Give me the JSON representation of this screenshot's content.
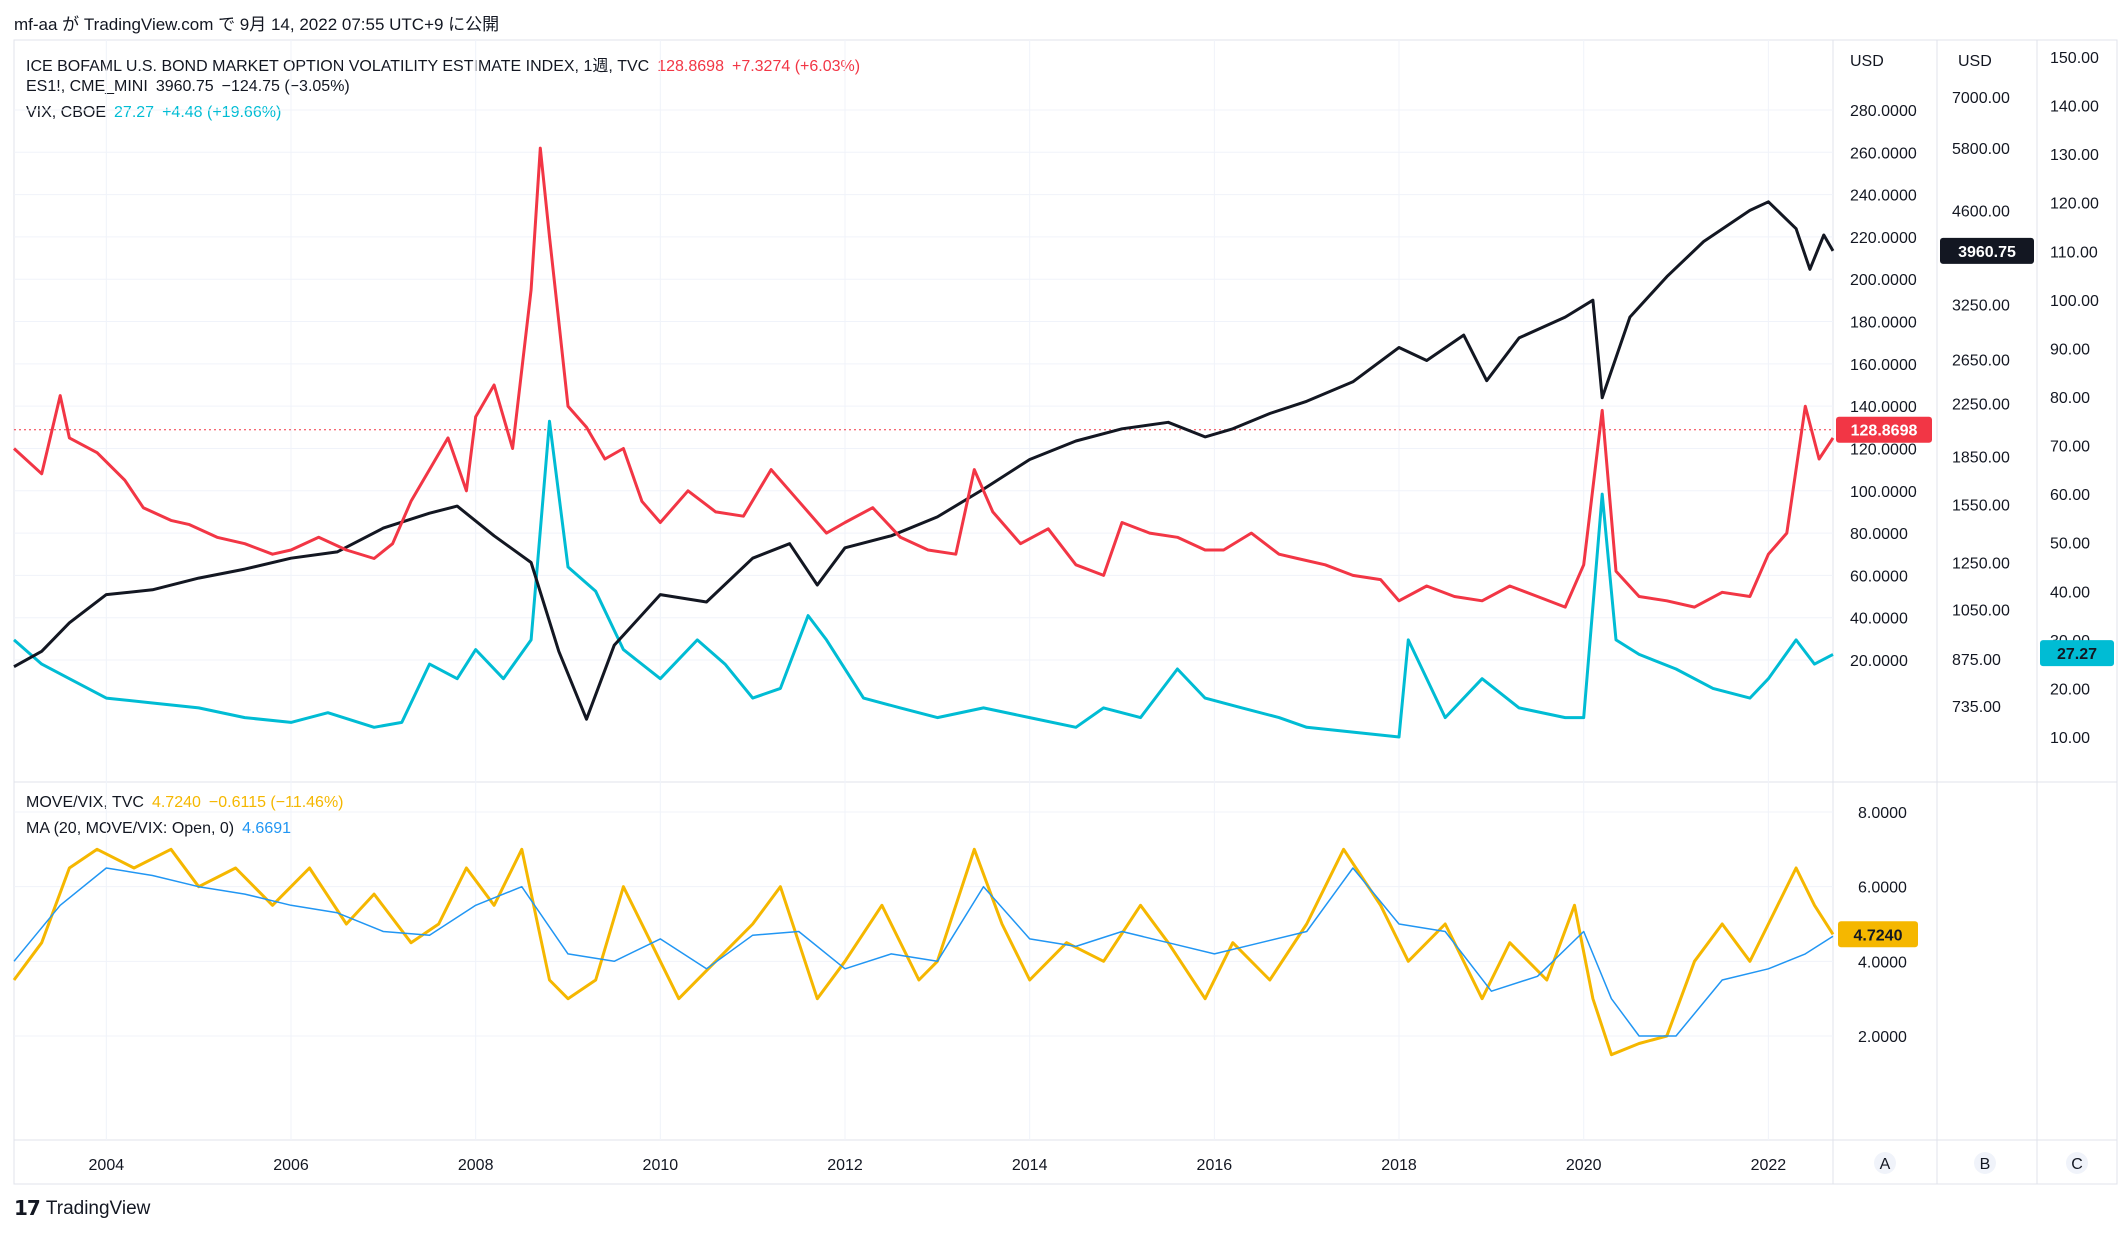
{
  "header": {
    "text": "mf-aa が TradingView.com で 9月 14, 2022 07:55 UTC+9 に公開"
  },
  "footer": {
    "brand": "TradingView",
    "logo_icon": "tradingview-logo-icon"
  },
  "legend_top": [
    {
      "name": "ICE BOFAML U.S. BOND MARKET OPTION VOLATILITY ESTIMATE INDEX, 1週, TVC",
      "value": "128.8698",
      "change": "+7.3274 (+6.03%)",
      "color": "#f23645"
    },
    {
      "name": "ES1!, CME_MINI",
      "value": "3960.75",
      "change": "−124.75 (−3.05%)",
      "color": "#131722"
    },
    {
      "name": "VIX, CBOE",
      "value": "27.27",
      "change": "+4.48 (+19.66%)",
      "color": "#00bcd4"
    }
  ],
  "legend_bottom": [
    {
      "name": "MOVE/VIX, TVC",
      "value": "4.7240",
      "change": "−0.6115 (−11.46%)",
      "color": "#f5b700"
    },
    {
      "name": "MA (20, MOVE/VIX: Open, 0)",
      "value": "4.6691",
      "change": "",
      "color": "#2196f3"
    }
  ],
  "scales": {
    "A": {
      "header": "USD",
      "ticks": [
        "280.0000",
        "260.0000",
        "240.0000",
        "220.0000",
        "200.0000",
        "180.0000",
        "160.0000",
        "140.0000",
        "120.0000",
        "100.0000",
        "80.0000",
        "60.0000",
        "40.0000",
        "20.0000"
      ],
      "badge": "128.8698",
      "badge_color": "#f23645"
    },
    "B": {
      "header": "USD",
      "ticks": [
        "7000.00",
        "5800.00",
        "4600.00",
        "3250.00",
        "2650.00",
        "2250.00",
        "1850.00",
        "1550.00",
        "1250.00",
        "1050.00",
        "875.00",
        "735.00"
      ],
      "badge": "3960.75",
      "badge_color": "#131722"
    },
    "C": {
      "ticks": [
        "150.00",
        "140.00",
        "130.00",
        "120.00",
        "110.00",
        "100.00",
        "90.00",
        "80.00",
        "70.00",
        "60.00",
        "50.00",
        "40.00",
        "30.00",
        "20.00",
        "10.00"
      ],
      "badge": "27.27",
      "badge_color": "#00bcd4"
    },
    "bottom": {
      "ticks": [
        "8.0000",
        "6.0000",
        "4.0000",
        "2.0000"
      ],
      "badge": "4.7240",
      "badge_color": "#f5b700"
    },
    "labels": [
      "A",
      "B",
      "C"
    ]
  },
  "x_axis": {
    "ticks": [
      "2004",
      "2006",
      "2008",
      "2010",
      "2012",
      "2014",
      "2016",
      "2018",
      "2020",
      "2022"
    ]
  },
  "chart_data": [
    {
      "type": "line",
      "title": "",
      "x_range": [
        2003.0,
        2022.7
      ],
      "series": [
        {
          "name": "ICE BOFAML U.S. BOND MARKET OPTION VOLATILITY ESTIMATE INDEX",
          "axis": "A",
          "color": "#f23645",
          "x": [
            2003.0,
            2003.3,
            2003.5,
            2003.6,
            2003.9,
            2004.2,
            2004.4,
            2004.7,
            2004.9,
            2005.2,
            2005.5,
            2005.8,
            2006.0,
            2006.3,
            2006.6,
            2006.9,
            2007.1,
            2007.3,
            2007.5,
            2007.7,
            2007.9,
            2008.0,
            2008.2,
            2008.4,
            2008.6,
            2008.7,
            2008.8,
            2008.9,
            2009.0,
            2009.2,
            2009.4,
            2009.6,
            2009.8,
            2010.0,
            2010.3,
            2010.6,
            2010.9,
            2011.2,
            2011.5,
            2011.8,
            2012.0,
            2012.3,
            2012.6,
            2012.9,
            2013.2,
            2013.4,
            2013.6,
            2013.9,
            2014.2,
            2014.5,
            2014.8,
            2015.0,
            2015.3,
            2015.6,
            2015.9,
            2016.1,
            2016.4,
            2016.7,
            2016.9,
            2017.2,
            2017.5,
            2017.8,
            2018.0,
            2018.3,
            2018.6,
            2018.9,
            2019.2,
            2019.5,
            2019.8,
            2020.0,
            2020.2,
            2020.35,
            2020.6,
            2020.9,
            2021.2,
            2021.5,
            2021.8,
            2022.0,
            2022.2,
            2022.4,
            2022.55,
            2022.7
          ],
          "values": [
            120,
            108,
            145,
            125,
            118,
            105,
            92,
            86,
            84,
            78,
            75,
            70,
            72,
            78,
            72,
            68,
            75,
            95,
            110,
            125,
            100,
            135,
            150,
            120,
            195,
            262,
            220,
            180,
            140,
            130,
            115,
            120,
            95,
            85,
            100,
            90,
            88,
            110,
            95,
            80,
            85,
            92,
            78,
            72,
            70,
            110,
            90,
            75,
            82,
            65,
            60,
            85,
            80,
            78,
            72,
            72,
            80,
            70,
            68,
            65,
            60,
            58,
            48,
            55,
            50,
            48,
            55,
            50,
            45,
            65,
            138,
            62,
            50,
            48,
            45,
            52,
            50,
            70,
            80,
            140,
            115,
            125
          ]
        },
        {
          "name": "ES1!, CME_MINI",
          "axis": "B",
          "color": "#131722",
          "x": [
            2003.0,
            2003.3,
            2003.6,
            2004.0,
            2004.5,
            2005.0,
            2005.5,
            2006.0,
            2006.5,
            2007.0,
            2007.5,
            2007.8,
            2008.2,
            2008.6,
            2008.9,
            2009.2,
            2009.5,
            2010.0,
            2010.5,
            2011.0,
            2011.4,
            2011.7,
            2012.0,
            2012.5,
            2013.0,
            2013.5,
            2014.0,
            2014.5,
            2015.0,
            2015.5,
            2015.9,
            2016.2,
            2016.6,
            2017.0,
            2017.5,
            2018.0,
            2018.3,
            2018.7,
            2018.95,
            2019.3,
            2019.8,
            2020.1,
            2020.2,
            2020.5,
            2020.9,
            2021.3,
            2021.8,
            2022.0,
            2022.3,
            2022.45,
            2022.6,
            2022.7
          ],
          "values": [
            850,
            900,
            1000,
            1110,
            1130,
            1180,
            1220,
            1270,
            1300,
            1420,
            1500,
            1540,
            1380,
            1250,
            900,
            700,
            920,
            1110,
            1080,
            1270,
            1340,
            1150,
            1320,
            1380,
            1480,
            1640,
            1830,
            1960,
            2050,
            2100,
            1990,
            2050,
            2170,
            2270,
            2440,
            2770,
            2640,
            2900,
            2450,
            2870,
            3100,
            3300,
            2300,
            3100,
            3600,
            4100,
            4600,
            4750,
            4300,
            3700,
            4200,
            3960
          ]
        },
        {
          "name": "VIX, CBOE",
          "axis": "C",
          "color": "#00bcd4",
          "x": [
            2003.0,
            2003.3,
            2003.6,
            2004.0,
            2004.5,
            2005.0,
            2005.5,
            2006.0,
            2006.4,
            2006.9,
            2007.2,
            2007.5,
            2007.8,
            2008.0,
            2008.3,
            2008.6,
            2008.8,
            2009.0,
            2009.3,
            2009.6,
            2010.0,
            2010.4,
            2010.7,
            2011.0,
            2011.3,
            2011.6,
            2011.8,
            2012.2,
            2012.6,
            2013.0,
            2013.5,
            2014.0,
            2014.5,
            2014.8,
            2015.2,
            2015.6,
            2015.9,
            2016.3,
            2016.7,
            2017.0,
            2017.5,
            2018.0,
            2018.1,
            2018.5,
            2018.9,
            2019.3,
            2019.8,
            2020.0,
            2020.2,
            2020.35,
            2020.6,
            2021.0,
            2021.4,
            2021.8,
            2022.0,
            2022.3,
            2022.5,
            2022.7
          ],
          "values": [
            30,
            25,
            22,
            18,
            17,
            16,
            14,
            13,
            15,
            12,
            13,
            25,
            22,
            28,
            22,
            30,
            75,
            45,
            40,
            28,
            22,
            30,
            25,
            18,
            20,
            35,
            30,
            18,
            16,
            14,
            16,
            14,
            12,
            16,
            14,
            24,
            18,
            16,
            14,
            12,
            11,
            10,
            30,
            14,
            22,
            16,
            14,
            14,
            60,
            30,
            27,
            24,
            20,
            18,
            22,
            30,
            25,
            27
          ]
        },
        {
          "name": "MOVE/VIX, TVC",
          "axis": "bottom",
          "color": "#f5b700",
          "x": [
            2003.0,
            2003.3,
            2003.6,
            2003.9,
            2004.3,
            2004.7,
            2005.0,
            2005.4,
            2005.8,
            2006.2,
            2006.6,
            2006.9,
            2007.3,
            2007.6,
            2007.9,
            2008.2,
            2008.5,
            2008.8,
            2009.0,
            2009.3,
            2009.6,
            2009.9,
            2010.2,
            2010.6,
            2011.0,
            2011.3,
            2011.7,
            2012.0,
            2012.4,
            2012.8,
            2013.0,
            2013.4,
            2013.7,
            2014.0,
            2014.4,
            2014.8,
            2015.2,
            2015.5,
            2015.9,
            2016.2,
            2016.6,
            2017.0,
            2017.4,
            2017.8,
            2018.1,
            2018.5,
            2018.9,
            2019.2,
            2019.6,
            2019.9,
            2020.1,
            2020.3,
            2020.6,
            2020.9,
            2021.2,
            2021.5,
            2021.8,
            2022.0,
            2022.3,
            2022.5,
            2022.7
          ],
          "values": [
            3.5,
            4.5,
            6.5,
            7.0,
            6.5,
            7.0,
            6.0,
            6.5,
            5.5,
            6.5,
            5.0,
            5.8,
            4.5,
            5.0,
            6.5,
            5.5,
            7.0,
            3.5,
            3.0,
            3.5,
            6.0,
            4.5,
            3.0,
            4.0,
            5.0,
            6.0,
            3.0,
            4.0,
            5.5,
            3.5,
            4.0,
            7.0,
            5.0,
            3.5,
            4.5,
            4.0,
            5.5,
            4.5,
            3.0,
            4.5,
            3.5,
            5.0,
            7.0,
            5.5,
            4.0,
            5.0,
            3.0,
            4.5,
            3.5,
            5.5,
            3.0,
            1.5,
            1.8,
            2.0,
            4.0,
            5.0,
            4.0,
            5.0,
            6.5,
            5.5,
            4.724
          ]
        },
        {
          "name": "MA (20, MOVE/VIX: Open, 0)",
          "axis": "bottom",
          "color": "#2196f3",
          "x": [
            2003.0,
            2003.5,
            2004.0,
            2004.5,
            2005.0,
            2005.5,
            2006.0,
            2006.5,
            2007.0,
            2007.5,
            2008.0,
            2008.5,
            2009.0,
            2009.5,
            2010.0,
            2010.5,
            2011.0,
            2011.5,
            2012.0,
            2012.5,
            2013.0,
            2013.5,
            2014.0,
            2014.5,
            2015.0,
            2015.5,
            2016.0,
            2016.5,
            2017.0,
            2017.5,
            2018.0,
            2018.5,
            2019.0,
            2019.5,
            2020.0,
            2020.3,
            2020.6,
            2021.0,
            2021.5,
            2022.0,
            2022.4,
            2022.7
          ],
          "values": [
            4.0,
            5.5,
            6.5,
            6.3,
            6.0,
            5.8,
            5.5,
            5.3,
            4.8,
            4.7,
            5.5,
            6.0,
            4.2,
            4.0,
            4.6,
            3.8,
            4.7,
            4.8,
            3.8,
            4.2,
            4.0,
            6.0,
            4.6,
            4.4,
            4.8,
            4.5,
            4.2,
            4.5,
            4.8,
            6.5,
            5.0,
            4.8,
            3.2,
            3.6,
            4.8,
            3.0,
            2.0,
            2.0,
            3.5,
            3.8,
            4.2,
            4.67
          ]
        }
      ]
    }
  ]
}
